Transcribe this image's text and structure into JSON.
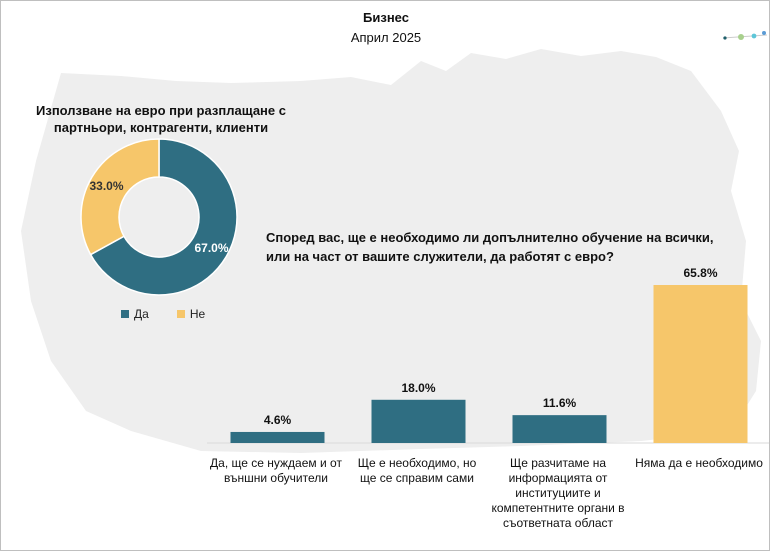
{
  "header": {
    "title": "Бизнес",
    "subtitle": "Април 2025"
  },
  "colors": {
    "teal": "#2f6e82",
    "yellow": "#f6c66a",
    "map": "#eeeeee",
    "dot_green": "#a8d08d",
    "dot_blue": "#5b9bd5",
    "dot_cyan": "#5ec6d8",
    "dot_dark": "#1f5f6b"
  },
  "chart_data": [
    {
      "type": "pie",
      "title": "Използване на евро при разплащане с партньори, контрагенти, клиенти",
      "categories": [
        "Да",
        "Не"
      ],
      "values": [
        67.0,
        33.0
      ],
      "value_labels": [
        "67.0%",
        "33.0%"
      ],
      "legend": "bottom"
    },
    {
      "type": "bar",
      "title": "Според вас, ще е необходимо ли допълнително обучение на всички, или на част от вашите служители, да работят с евро?",
      "categories": [
        "Да, ще се нуждаем и от външни обучители",
        "Ще е необходимо, но ще се справим сами",
        "Ще разчитаме на информацията от институциите и компетентните органи в съответната област",
        "Няма да е необходимо"
      ],
      "values": [
        4.6,
        18.0,
        11.6,
        65.8
      ],
      "value_labels": [
        "4.6%",
        "18.0%",
        "11.6%",
        "65.8%"
      ],
      "ylim": [
        0,
        65.8
      ],
      "grid": false
    }
  ]
}
